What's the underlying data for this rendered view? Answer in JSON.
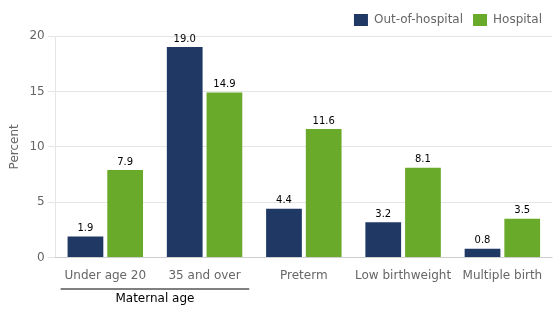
{
  "chart_data": {
    "type": "bar",
    "categories": [
      "Under age 20",
      "35 and over",
      "Preterm",
      "Low birthweight",
      "Multiple birth"
    ],
    "series": [
      {
        "name": "Out-of-hospital",
        "color": "#1f3864",
        "values": [
          1.9,
          19.0,
          4.4,
          3.2,
          0.8
        ],
        "value_labels": [
          "1.9",
          "19.0",
          "4.4",
          "3.2",
          "0.8"
        ]
      },
      {
        "name": "Hospital",
        "color": "#6aaa2a",
        "values": [
          7.9,
          14.9,
          11.6,
          8.1,
          3.5
        ],
        "value_labels": [
          "7.9",
          "14.9",
          "11.6",
          "8.1",
          "3.5"
        ]
      }
    ],
    "ylabel": "Percent",
    "ylim": [
      0,
      20
    ],
    "yticks": [
      0,
      5,
      10,
      15,
      20
    ],
    "grid": true,
    "legend": "upper right",
    "data_labels": true,
    "annotations": [
      {
        "text": "Maternal age",
        "categories": [
          "Under age 20",
          "35 and over"
        ]
      }
    ]
  }
}
